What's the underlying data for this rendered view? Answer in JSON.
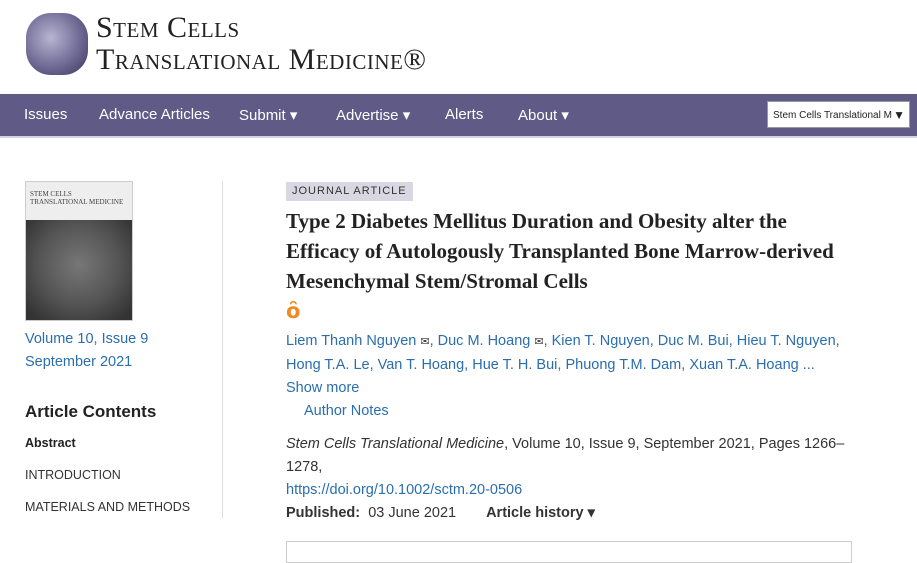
{
  "header": {
    "logo_line1": "Stem Cells",
    "logo_line2": "Translational Medicine®"
  },
  "nav": {
    "items": [
      "Issues",
      "Advance Articles",
      "Submit ▾",
      "Advertise ▾",
      "Alerts",
      "About ▾"
    ],
    "search_select": "Stem Cells Translational M"
  },
  "sidebar": {
    "issue": "Volume 10, Issue 9",
    "date": "September 2021",
    "contents_title": "Article Contents",
    "contents": [
      "Abstract",
      "INTRODUCTION",
      "MATERIALS AND METHODS"
    ]
  },
  "article": {
    "type": "JOURNAL ARTICLE",
    "title": "Type 2 Diabetes Mellitus Duration and Obesity alter the Efficacy of Autologously Transplanted Bone Marrow-derived Mesenchymal Stem/Stromal Cells",
    "authors": [
      "Liem Thanh Nguyen",
      "Duc M. Hoang",
      "Kien T. Nguyen",
      "Duc M. Bui",
      "Hieu T. Nguyen",
      "Hong T.A. Le",
      "Van T. Hoang",
      "Hue T. H. Bui",
      "Phuong T.M. Dam",
      "Xuan T.A. Hoang"
    ],
    "show_more": "... Show more",
    "author_notes": "Author Notes",
    "journal": "Stem Cells Translational Medicine",
    "citation": ", Volume 10, Issue 9, September 2021, Pages 1266–1278,",
    "doi": "https://doi.org/10.1002/sctm.20-0506",
    "published_label": "Published:",
    "published_date": "03 June 2021",
    "history": "Article history ▾"
  }
}
